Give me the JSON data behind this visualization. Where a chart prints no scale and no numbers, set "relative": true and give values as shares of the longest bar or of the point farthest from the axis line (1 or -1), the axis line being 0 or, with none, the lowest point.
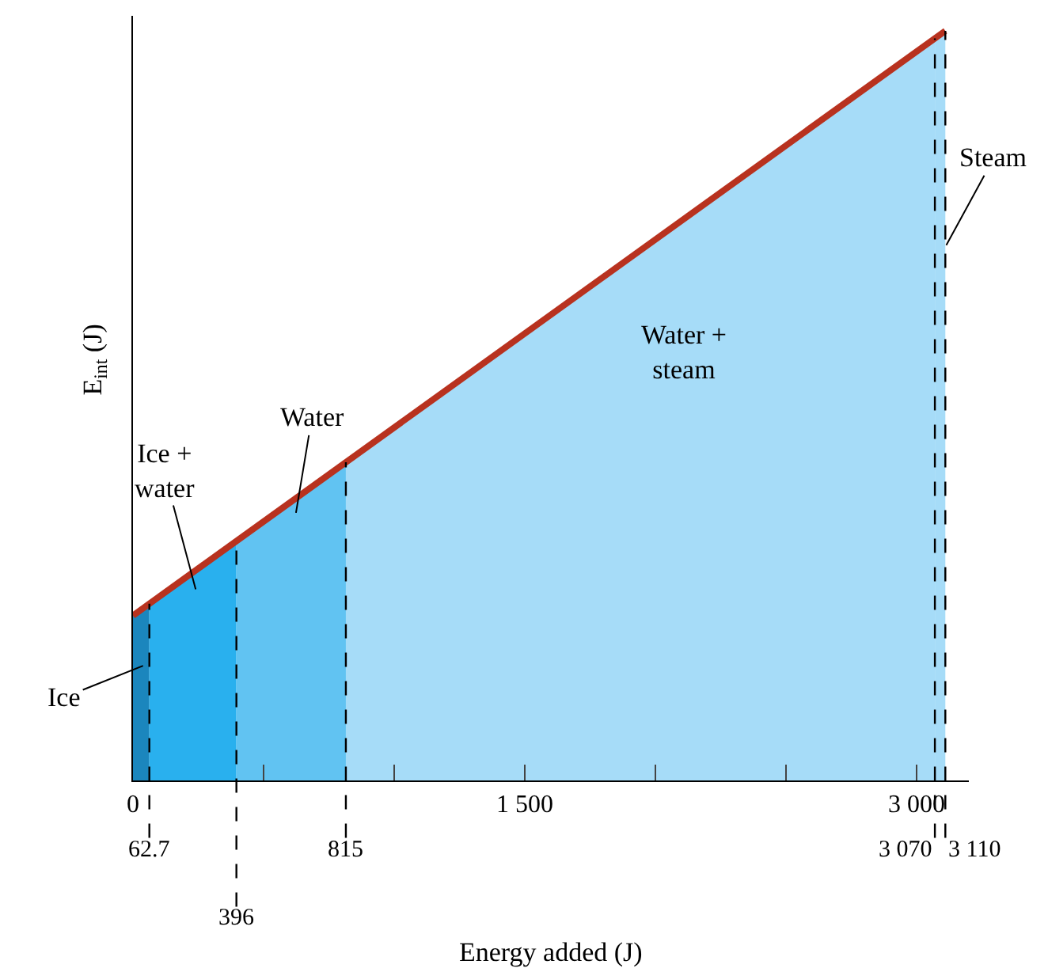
{
  "chart_data": {
    "type": "line",
    "relative": true,
    "xlabel": "Energy added (J)",
    "ylabel": "E$_{int}$ (J)",
    "xlim": [
      0,
      3200
    ],
    "xticks": [
      0,
      {
        "value": 500,
        "label": null
      },
      {
        "value": 1000,
        "label": null
      },
      {
        "value": 1500,
        "label": "1 500"
      },
      {
        "value": 2000,
        "label": null
      },
      {
        "value": 2500,
        "label": null
      },
      {
        "value": 3000,
        "label": "3 000"
      }
    ],
    "series": [
      {
        "type": "area",
        "color": "#1b86bd",
        "x": [
          0,
          62.7
        ],
        "values": [
          0.22,
          0.236
        ]
      },
      {
        "type": "area",
        "color": "#29b0ee",
        "x": [
          62.7,
          396
        ],
        "values": [
          0.236,
          0.319
        ]
      },
      {
        "type": "area",
        "color": "#61c3f2",
        "x": [
          396,
          815
        ],
        "values": [
          0.319,
          0.424
        ]
      },
      {
        "type": "area",
        "color": "#a6dcf8",
        "x": [
          815,
          3070
        ],
        "values": [
          0.424,
          0.99
        ]
      },
      {
        "type": "area",
        "color": "#a6dcf8",
        "x": [
          3070,
          3110
        ],
        "values": [
          0.99,
          1
        ]
      },
      {
        "color": "#b8321f",
        "x": [
          0,
          3110
        ],
        "values": [
          0.22,
          1
        ]
      }
    ],
    "ref_lines": [
      {
        "axis": "x",
        "value": 62.7,
        "label": "62.7",
        "line_style": "dashed"
      },
      {
        "axis": "x",
        "value": 396,
        "label": "396",
        "line_style": "dashed"
      },
      {
        "axis": "x",
        "value": 815,
        "label": "815",
        "line_style": "dashed"
      },
      {
        "axis": "x",
        "value": 3070,
        "label": "3 070",
        "line_style": "dashed"
      },
      {
        "axis": "x",
        "value": 3110,
        "label": "3 110",
        "line_style": "dashed"
      }
    ],
    "annotations": [
      "Ice",
      "Ice +\nwater",
      "Water",
      "Water +\nsteam",
      "Steam"
    ]
  }
}
